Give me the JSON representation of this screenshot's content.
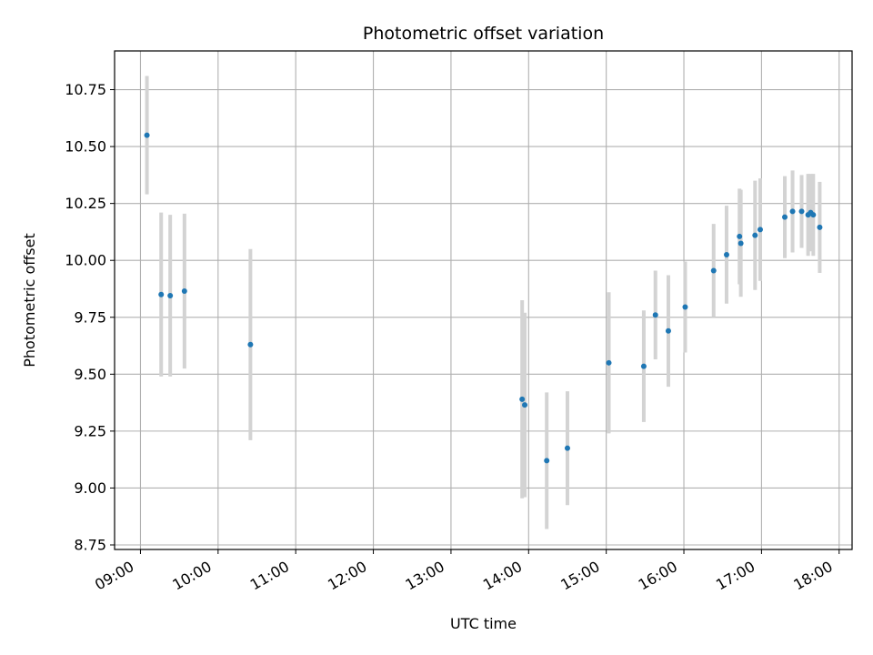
{
  "chart_data": {
    "type": "scatter",
    "title": "Photometric offset variation",
    "xlabel": "UTC time",
    "ylabel": "Photometric offset",
    "grid": true,
    "xlim": [
      "08:40",
      "18:10"
    ],
    "ylim": [
      8.73,
      10.92
    ],
    "x_ticks": [
      "09:00",
      "10:00",
      "11:00",
      "12:00",
      "13:00",
      "14:00",
      "15:00",
      "16:00",
      "17:00",
      "18:00"
    ],
    "y_ticks": [
      "8.75",
      "9.00",
      "9.25",
      "9.50",
      "9.75",
      "10.00",
      "10.25",
      "10.50",
      "10.75"
    ],
    "colors": {
      "points": "#1f77b4",
      "errorbars": "#d3d3d3",
      "grid": "#b0b0b0"
    },
    "series": [
      {
        "points": [
          {
            "x": "09:05",
            "y": 10.55,
            "err": 0.26
          },
          {
            "x": "09:16",
            "y": 9.85,
            "err": 0.36
          },
          {
            "x": "09:23",
            "y": 9.845,
            "err": 0.355
          },
          {
            "x": "09:34",
            "y": 9.865,
            "err": 0.34
          },
          {
            "x": "10:25",
            "y": 9.63,
            "err": 0.42
          },
          {
            "x": "13:55",
            "y": 9.39,
            "err": 0.435
          },
          {
            "x": "13:57",
            "y": 9.365,
            "err": 0.405
          },
          {
            "x": "14:14",
            "y": 9.12,
            "err": 0.3
          },
          {
            "x": "14:30",
            "y": 9.175,
            "err": 0.25
          },
          {
            "x": "15:02",
            "y": 9.55,
            "err": 0.31
          },
          {
            "x": "15:29",
            "y": 9.535,
            "err": 0.245
          },
          {
            "x": "15:38",
            "y": 9.76,
            "err": 0.195
          },
          {
            "x": "15:48",
            "y": 9.69,
            "err": 0.245
          },
          {
            "x": "16:01",
            "y": 9.795,
            "err": 0.2
          },
          {
            "x": "16:23",
            "y": 9.955,
            "err": 0.205
          },
          {
            "x": "16:33",
            "y": 10.025,
            "err": 0.215
          },
          {
            "x": "16:43",
            "y": 10.105,
            "err": 0.21
          },
          {
            "x": "16:44",
            "y": 10.075,
            "err": 0.235
          },
          {
            "x": "16:55",
            "y": 10.11,
            "err": 0.24
          },
          {
            "x": "16:59",
            "y": 10.135,
            "err": 0.225
          },
          {
            "x": "17:18",
            "y": 10.19,
            "err": 0.18
          },
          {
            "x": "17:24",
            "y": 10.215,
            "err": 0.18
          },
          {
            "x": "17:31",
            "y": 10.215,
            "err": 0.16
          },
          {
            "x": "17:36",
            "y": 10.2,
            "err": 0.18
          },
          {
            "x": "17:38",
            "y": 10.21,
            "err": 0.17
          },
          {
            "x": "17:40",
            "y": 10.2,
            "err": 0.18
          },
          {
            "x": "17:45",
            "y": 10.145,
            "err": 0.2
          }
        ]
      }
    ]
  }
}
